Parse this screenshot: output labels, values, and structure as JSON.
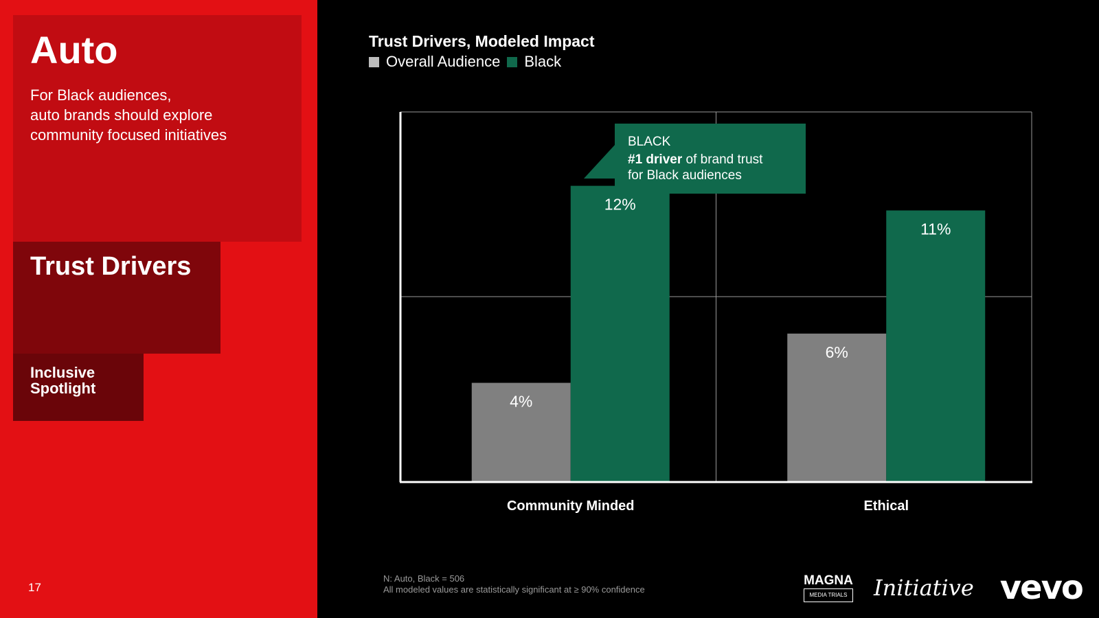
{
  "sidebar": {
    "title": "Auto",
    "intro": "For Black audiences,\nauto brands should explore\ncommunity focused initiatives",
    "section": "Trust Drivers",
    "spotlight": "Inclusive\nSpotlight",
    "page_number": "17"
  },
  "callout": {
    "heading": "BLACK",
    "line1_bold": "#1 driver",
    "line1_rest": " of brand trust",
    "line2": "for Black audiences"
  },
  "footnote": "N: Auto, Black = 506\nAll modeled values are statistically significant at ≥ 90% confidence",
  "logos": {
    "magna": "MAGNA",
    "magna_sub": "MEDIA TRIALS",
    "initiative": "Initiative",
    "vevo": "vevo"
  },
  "colors": {
    "overall": "#808080",
    "black": "#10694c",
    "sidebar_red": "#e31014"
  },
  "chart_data": {
    "type": "bar",
    "title": "Trust Drivers, Modeled Impact",
    "categories": [
      "Community Minded",
      "Ethical"
    ],
    "series": [
      {
        "name": "Overall Audience",
        "values": [
          4,
          6
        ],
        "labels": [
          "4%",
          "6%"
        ],
        "color": "#808080"
      },
      {
        "name": "Black",
        "values": [
          12,
          11
        ],
        "labels": [
          "12%",
          "11%"
        ],
        "color": "#10694c"
      }
    ],
    "ylim": [
      0,
      15
    ],
    "grid": true,
    "legend": "top-left"
  }
}
